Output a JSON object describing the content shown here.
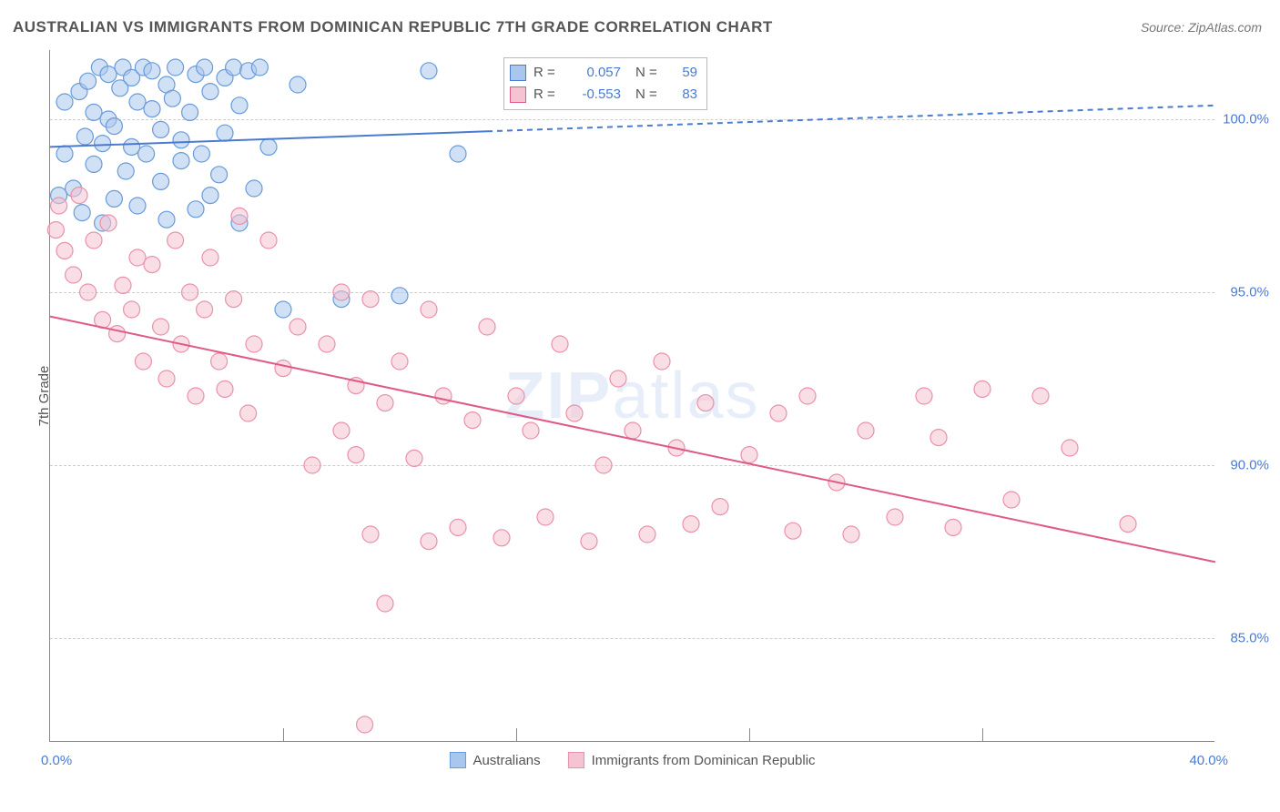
{
  "title": "AUSTRALIAN VS IMMIGRANTS FROM DOMINICAN REPUBLIC 7TH GRADE CORRELATION CHART",
  "source": "Source: ZipAtlas.com",
  "watermark": {
    "prefix": "ZIP",
    "suffix": "atlas"
  },
  "y_axis_title": "7th Grade",
  "chart": {
    "type": "scatter-correlation",
    "xlim": [
      0.0,
      40.0
    ],
    "ylim": [
      82.0,
      102.0
    ],
    "x_tick_positions_pct": [
      0,
      20,
      40,
      60,
      80,
      100
    ],
    "x_label_min": "0.0%",
    "x_label_max": "40.0%",
    "y_gridlines": [
      {
        "value": 100.0,
        "label": "100.0%"
      },
      {
        "value": 95.0,
        "label": "95.0%"
      },
      {
        "value": 90.0,
        "label": "90.0%"
      },
      {
        "value": 85.0,
        "label": "85.0%"
      }
    ],
    "background_color": "#ffffff",
    "grid_color": "#cccccc",
    "axis_color": "#888888",
    "label_color": "#4a7bd0",
    "series": [
      {
        "name": "Australians",
        "color_fill": "#a9c7ec",
        "color_stroke": "#6a9bd8",
        "line_color": "#4a7bd0",
        "marker_radius": 9,
        "marker_opacity": 0.55,
        "R": "0.057",
        "N": "59",
        "regression": {
          "x1": 0.0,
          "y1": 99.2,
          "x2": 40.0,
          "y2": 100.4,
          "solid_until_x": 15.0
        },
        "points": [
          [
            0.3,
            97.8
          ],
          [
            0.5,
            99.0
          ],
          [
            0.5,
            100.5
          ],
          [
            0.8,
            98.0
          ],
          [
            1.0,
            100.8
          ],
          [
            1.1,
            97.3
          ],
          [
            1.2,
            99.5
          ],
          [
            1.3,
            101.1
          ],
          [
            1.5,
            98.7
          ],
          [
            1.5,
            100.2
          ],
          [
            1.7,
            101.5
          ],
          [
            1.8,
            97.0
          ],
          [
            1.8,
            99.3
          ],
          [
            2.0,
            100.0
          ],
          [
            2.0,
            101.3
          ],
          [
            2.2,
            97.7
          ],
          [
            2.2,
            99.8
          ],
          [
            2.4,
            100.9
          ],
          [
            2.5,
            101.5
          ],
          [
            2.6,
            98.5
          ],
          [
            2.8,
            99.2
          ],
          [
            2.8,
            101.2
          ],
          [
            3.0,
            97.5
          ],
          [
            3.0,
            100.5
          ],
          [
            3.2,
            101.5
          ],
          [
            3.3,
            99.0
          ],
          [
            3.5,
            100.3
          ],
          [
            3.5,
            101.4
          ],
          [
            3.8,
            98.2
          ],
          [
            3.8,
            99.7
          ],
          [
            4.0,
            101.0
          ],
          [
            4.0,
            97.1
          ],
          [
            4.2,
            100.6
          ],
          [
            4.3,
            101.5
          ],
          [
            4.5,
            98.8
          ],
          [
            4.5,
            99.4
          ],
          [
            4.8,
            100.2
          ],
          [
            5.0,
            97.4
          ],
          [
            5.0,
            101.3
          ],
          [
            5.2,
            99.0
          ],
          [
            5.3,
            101.5
          ],
          [
            5.5,
            97.8
          ],
          [
            5.5,
            100.8
          ],
          [
            5.8,
            98.4
          ],
          [
            6.0,
            99.6
          ],
          [
            6.0,
            101.2
          ],
          [
            6.3,
            101.5
          ],
          [
            6.5,
            97.0
          ],
          [
            6.5,
            100.4
          ],
          [
            6.8,
            101.4
          ],
          [
            7.0,
            98.0
          ],
          [
            7.2,
            101.5
          ],
          [
            7.5,
            99.2
          ],
          [
            8.0,
            94.5
          ],
          [
            8.5,
            101.0
          ],
          [
            10.0,
            94.8
          ],
          [
            12.0,
            94.9
          ],
          [
            13.0,
            101.4
          ],
          [
            14.0,
            99.0
          ]
        ]
      },
      {
        "name": "Immigrants from Dominican Republic",
        "color_fill": "#f5c3d1",
        "color_stroke": "#e891aa",
        "line_color": "#e05a86",
        "marker_radius": 9,
        "marker_opacity": 0.55,
        "R": "-0.553",
        "N": "83",
        "regression": {
          "x1": 0.0,
          "y1": 94.3,
          "x2": 40.0,
          "y2": 87.2,
          "solid_until_x": 40.0
        },
        "points": [
          [
            0.2,
            96.8
          ],
          [
            0.3,
            97.5
          ],
          [
            0.5,
            96.2
          ],
          [
            0.8,
            95.5
          ],
          [
            1.0,
            97.8
          ],
          [
            1.3,
            95.0
          ],
          [
            1.5,
            96.5
          ],
          [
            1.8,
            94.2
          ],
          [
            2.0,
            97.0
          ],
          [
            2.3,
            93.8
          ],
          [
            2.5,
            95.2
          ],
          [
            2.8,
            94.5
          ],
          [
            3.0,
            96.0
          ],
          [
            3.2,
            93.0
          ],
          [
            3.5,
            95.8
          ],
          [
            3.8,
            94.0
          ],
          [
            4.0,
            92.5
          ],
          [
            4.3,
            96.5
          ],
          [
            4.5,
            93.5
          ],
          [
            4.8,
            95.0
          ],
          [
            5.0,
            92.0
          ],
          [
            5.3,
            94.5
          ],
          [
            5.5,
            96.0
          ],
          [
            5.8,
            93.0
          ],
          [
            6.0,
            92.2
          ],
          [
            6.3,
            94.8
          ],
          [
            6.5,
            97.2
          ],
          [
            6.8,
            91.5
          ],
          [
            7.0,
            93.5
          ],
          [
            7.5,
            96.5
          ],
          [
            8.0,
            92.8
          ],
          [
            8.5,
            94.0
          ],
          [
            9.0,
            90.0
          ],
          [
            9.5,
            93.5
          ],
          [
            10.0,
            91.0
          ],
          [
            10.0,
            95.0
          ],
          [
            10.5,
            92.3
          ],
          [
            10.5,
            90.3
          ],
          [
            10.8,
            82.5
          ],
          [
            11.0,
            88.0
          ],
          [
            11.0,
            94.8
          ],
          [
            11.5,
            86.0
          ],
          [
            11.5,
            91.8
          ],
          [
            12.0,
            93.0
          ],
          [
            12.5,
            90.2
          ],
          [
            13.0,
            87.8
          ],
          [
            13.0,
            94.5
          ],
          [
            13.5,
            92.0
          ],
          [
            14.0,
            88.2
          ],
          [
            14.5,
            91.3
          ],
          [
            15.0,
            94.0
          ],
          [
            15.5,
            87.9
          ],
          [
            16.0,
            92.0
          ],
          [
            16.5,
            91.0
          ],
          [
            17.0,
            88.5
          ],
          [
            17.5,
            93.5
          ],
          [
            18.0,
            91.5
          ],
          [
            18.5,
            87.8
          ],
          [
            19.0,
            90.0
          ],
          [
            19.5,
            92.5
          ],
          [
            20.0,
            91.0
          ],
          [
            20.5,
            88.0
          ],
          [
            21.0,
            93.0
          ],
          [
            21.5,
            90.5
          ],
          [
            22.0,
            88.3
          ],
          [
            22.5,
            91.8
          ],
          [
            23.0,
            88.8
          ],
          [
            24.0,
            90.3
          ],
          [
            25.0,
            91.5
          ],
          [
            25.5,
            88.1
          ],
          [
            26.0,
            92.0
          ],
          [
            27.0,
            89.5
          ],
          [
            27.5,
            88.0
          ],
          [
            28.0,
            91.0
          ],
          [
            29.0,
            88.5
          ],
          [
            30.0,
            92.0
          ],
          [
            30.5,
            90.8
          ],
          [
            31.0,
            88.2
          ],
          [
            32.0,
            92.2
          ],
          [
            33.0,
            89.0
          ],
          [
            34.0,
            92.0
          ],
          [
            35.0,
            90.5
          ],
          [
            37.0,
            88.3
          ]
        ]
      }
    ],
    "legend_bottom": [
      {
        "label": "Australians",
        "fill": "#a9c7ec",
        "stroke": "#6a9bd8"
      },
      {
        "label": "Immigrants from Dominican Republic",
        "fill": "#f5c3d1",
        "stroke": "#e891aa"
      }
    ]
  }
}
